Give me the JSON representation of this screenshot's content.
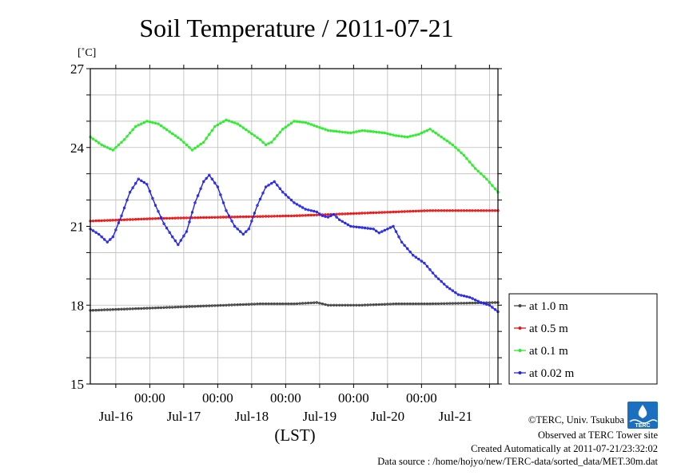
{
  "chart_data": {
    "type": "line",
    "title": "Soil Temperature / 2011-07-21",
    "ylabel": "[˚C]",
    "xlabel": "(LST)",
    "ylim": [
      15,
      27
    ],
    "yticks": [
      "15",
      "18",
      "21",
      "24",
      "27"
    ],
    "xlim_hours": [
      0,
      144
    ],
    "xticks_top": [
      "00:00",
      "00:00",
      "00:00",
      "00:00",
      "00:00"
    ],
    "xticks_bottom": [
      "Jul-16",
      "Jul-17",
      "Jul-18",
      "Jul-19",
      "Jul-20",
      "Jul-21"
    ],
    "grid": true,
    "legend_position": "right, lower",
    "series": [
      {
        "name": "at 1.0 m",
        "color": "#444444",
        "points": [
          [
            0,
            17.8
          ],
          [
            12,
            17.85
          ],
          [
            24,
            17.9
          ],
          [
            36,
            17.95
          ],
          [
            48,
            18.0
          ],
          [
            60,
            18.05
          ],
          [
            72,
            18.05
          ],
          [
            80,
            18.1
          ],
          [
            84,
            18.0
          ],
          [
            96,
            18.0
          ],
          [
            108,
            18.05
          ],
          [
            120,
            18.05
          ],
          [
            144,
            18.1
          ]
        ]
      },
      {
        "name": "at 0.5 m",
        "color": "#ee1111",
        "points": [
          [
            0,
            21.2
          ],
          [
            24,
            21.3
          ],
          [
            48,
            21.35
          ],
          [
            72,
            21.4
          ],
          [
            96,
            21.5
          ],
          [
            120,
            21.6
          ],
          [
            144,
            21.6
          ]
        ]
      },
      {
        "name": "at 0.1 m",
        "color": "#22ee22",
        "points": [
          [
            0,
            24.4
          ],
          [
            4,
            24.1
          ],
          [
            8,
            23.9
          ],
          [
            12,
            24.3
          ],
          [
            16,
            24.8
          ],
          [
            20,
            25.0
          ],
          [
            24,
            24.9
          ],
          [
            28,
            24.6
          ],
          [
            32,
            24.3
          ],
          [
            36,
            23.9
          ],
          [
            40,
            24.2
          ],
          [
            44,
            24.8
          ],
          [
            48,
            25.05
          ],
          [
            52,
            24.9
          ],
          [
            56,
            24.6
          ],
          [
            60,
            24.3
          ],
          [
            62,
            24.1
          ],
          [
            64,
            24.2
          ],
          [
            68,
            24.7
          ],
          [
            72,
            25.0
          ],
          [
            76,
            24.95
          ],
          [
            80,
            24.8
          ],
          [
            84,
            24.65
          ],
          [
            88,
            24.6
          ],
          [
            92,
            24.55
          ],
          [
            96,
            24.65
          ],
          [
            100,
            24.6
          ],
          [
            104,
            24.55
          ],
          [
            108,
            24.45
          ],
          [
            112,
            24.4
          ],
          [
            116,
            24.5
          ],
          [
            120,
            24.7
          ],
          [
            124,
            24.4
          ],
          [
            128,
            24.1
          ],
          [
            132,
            23.7
          ],
          [
            136,
            23.2
          ],
          [
            140,
            22.8
          ],
          [
            144,
            22.3
          ]
        ]
      },
      {
        "name": "at 0.02 m",
        "color": "#2222ee",
        "points": [
          [
            0,
            20.9
          ],
          [
            3,
            20.7
          ],
          [
            6,
            20.4
          ],
          [
            8,
            20.6
          ],
          [
            11,
            21.4
          ],
          [
            14,
            22.3
          ],
          [
            17,
            22.8
          ],
          [
            20,
            22.6
          ],
          [
            23,
            21.8
          ],
          [
            26,
            21.1
          ],
          [
            29,
            20.6
          ],
          [
            31,
            20.3
          ],
          [
            34,
            20.8
          ],
          [
            37,
            21.9
          ],
          [
            40,
            22.7
          ],
          [
            42,
            22.95
          ],
          [
            45,
            22.5
          ],
          [
            48,
            21.6
          ],
          [
            51,
            21.0
          ],
          [
            54,
            20.7
          ],
          [
            56,
            20.9
          ],
          [
            59,
            21.8
          ],
          [
            62,
            22.5
          ],
          [
            65,
            22.7
          ],
          [
            68,
            22.3
          ],
          [
            72,
            21.9
          ],
          [
            76,
            21.65
          ],
          [
            80,
            21.55
          ],
          [
            82,
            21.4
          ],
          [
            84,
            21.35
          ],
          [
            86,
            21.45
          ],
          [
            88,
            21.25
          ],
          [
            92,
            21.0
          ],
          [
            96,
            20.95
          ],
          [
            100,
            20.9
          ],
          [
            102,
            20.75
          ],
          [
            105,
            20.9
          ],
          [
            107,
            21.0
          ],
          [
            110,
            20.4
          ],
          [
            114,
            19.9
          ],
          [
            118,
            19.6
          ],
          [
            122,
            19.1
          ],
          [
            126,
            18.7
          ],
          [
            130,
            18.4
          ],
          [
            134,
            18.3
          ],
          [
            138,
            18.1
          ],
          [
            141,
            18.0
          ],
          [
            144,
            17.75
          ]
        ]
      }
    ]
  },
  "credits": {
    "copyright": "©TERC, Univ. Tsukuba",
    "observed": "Observed at TERC Tower site",
    "created": "Created Automatically at 2011-07-21/23:32:02",
    "source": "Data source : /home/hojyo/new/TERC-data/sorted_data/MET.30m.dat"
  },
  "logo": {
    "text": "TERC",
    "color": "#1a6fc0"
  }
}
